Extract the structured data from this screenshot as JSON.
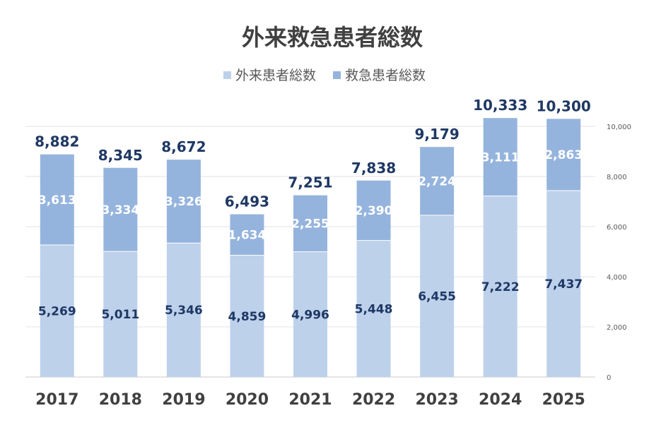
{
  "chart_data": {
    "type": "bar",
    "stacked": true,
    "title": "外来救急患者総数",
    "categories": [
      "2017",
      "2018",
      "2019",
      "2020",
      "2021",
      "2022",
      "2023",
      "2024",
      "2025"
    ],
    "series": [
      {
        "name": "外来患者総数",
        "color": "#bdd1eb",
        "values": [
          5269,
          5011,
          5346,
          4859,
          4996,
          5448,
          6455,
          7222,
          7437
        ],
        "labels": [
          "5,269",
          "5,011",
          "5,346",
          "4,859",
          "4,996",
          "5,448",
          "6,455",
          "7,222",
          "7,437"
        ]
      },
      {
        "name": "救急患者総数",
        "color": "#95b4dd",
        "values": [
          3613,
          3334,
          3326,
          1634,
          2255,
          2390,
          2724,
          3111,
          2863
        ],
        "labels": [
          "3,613",
          "3,334",
          "3,326",
          "1,634",
          "2,255",
          "2,390",
          "2,724",
          "3,111",
          "2,863"
        ]
      }
    ],
    "totals": [
      "8,882",
      "8,345",
      "8,672",
      "6,493",
      "7,251",
      "7,838",
      "9,179",
      "10,333",
      "10,300"
    ],
    "y_axis": {
      "position": "right",
      "ylim": [
        0,
        10000
      ],
      "ticks": [
        "0",
        "2,000",
        "4,000",
        "6,000",
        "8,000",
        "10,000"
      ]
    },
    "grid": true,
    "legend": "top"
  }
}
